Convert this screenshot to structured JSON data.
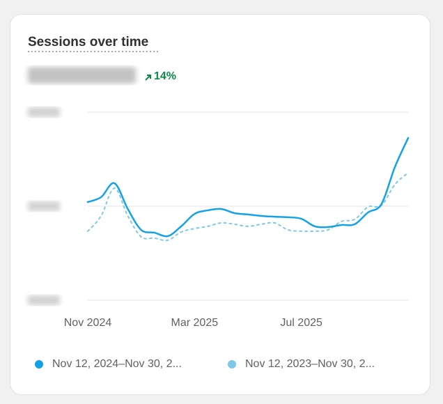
{
  "chart_data": {
    "type": "line",
    "title": "Sessions over time",
    "change": "14%",
    "categories": [
      "Nov 2024",
      null,
      null,
      null,
      null,
      null,
      null,
      null,
      "Mar 2025",
      null,
      null,
      null,
      null,
      null,
      null,
      null,
      "Jul 2025",
      null,
      null,
      null,
      null,
      null,
      null,
      null,
      null
    ],
    "series": [
      {
        "name": "Nov 12, 2024–Nov 30, 2...",
        "color": "#13a2e5",
        "dashed": false,
        "values": [
          52.2,
          54.8,
          62.2,
          48.5,
          37.4,
          35.9,
          34.1,
          39.3,
          45.9,
          47.8,
          48.5,
          46.3,
          45.6,
          44.8,
          44.4,
          44.1,
          43.3,
          39.3,
          38.9,
          40,
          40.4,
          46.7,
          51.1,
          70.7,
          86.3
        ]
      },
      {
        "name": "Nov 12, 2023–Nov 30, 2...",
        "color": "#7cc8e8",
        "dashed": true,
        "values": [
          36.7,
          44.8,
          59.6,
          44.8,
          33.7,
          33,
          31.9,
          36.3,
          38.1,
          39.3,
          41.1,
          40.4,
          39.3,
          40.4,
          41.1,
          37.4,
          36.7,
          36.7,
          37.4,
          41.9,
          43,
          49.6,
          50.4,
          61.5,
          67.8
        ]
      }
    ],
    "ylim": [
      0,
      100
    ],
    "yticks": [
      0,
      50,
      100
    ],
    "grid": true
  }
}
